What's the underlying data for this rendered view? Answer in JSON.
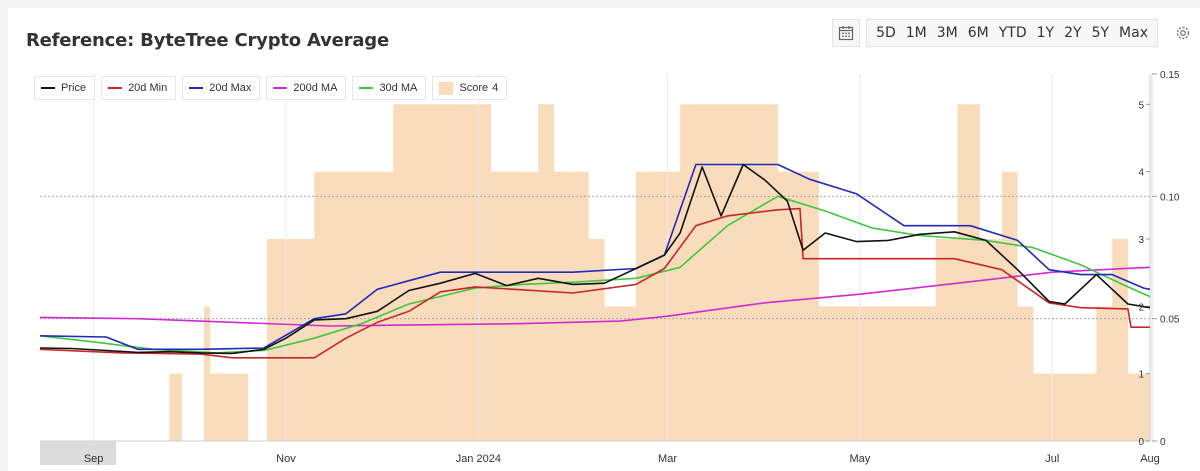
{
  "title": "Reference: ByteTree Crypto Average",
  "toolbar": {
    "calendar_icon": "calendar-icon",
    "ranges": [
      "5D",
      "1M",
      "3M",
      "6M",
      "YTD",
      "1Y",
      "2Y",
      "5Y",
      "Max"
    ],
    "settings_icon": "gear-icon"
  },
  "legend": [
    {
      "label": "Price",
      "color": "#111111",
      "kind": "line"
    },
    {
      "label": "20d Min",
      "color": "#c62828",
      "kind": "line"
    },
    {
      "label": "20d Max",
      "color": "#1f2ab8",
      "kind": "line"
    },
    {
      "label": "200d MA",
      "color": "#d12ad1",
      "kind": "line"
    },
    {
      "label": "30d MA",
      "color": "#3cc83c",
      "kind": "line"
    },
    {
      "label": "Score",
      "color": "#f9dcbc",
      "kind": "area",
      "value": "4"
    }
  ],
  "chart_data": {
    "type": "line",
    "title": "Reference: ByteTree Crypto Average",
    "x_range": [
      "2023-08-15",
      "2024-08-01"
    ],
    "x_ticks": [
      {
        "label": "Sep",
        "date": "2023-09-01"
      },
      {
        "label": "Nov",
        "date": "2023-11-01"
      },
      {
        "label": "Jan 2024",
        "date": "2024-01-01"
      },
      {
        "label": "Mar",
        "date": "2024-03-01"
      },
      {
        "label": "May",
        "date": "2024-05-01"
      },
      {
        "label": "Jul",
        "date": "2024-07-01"
      },
      {
        "label": "Aug",
        "date": "2024-08-01"
      }
    ],
    "y_right": {
      "ticks": [
        0,
        0.05,
        0.1,
        0.15
      ],
      "labels": [
        "0",
        "0.05",
        "0.10",
        "0.15"
      ],
      "range": [
        0,
        0.15
      ]
    },
    "y_score": {
      "ticks": [
        0,
        1,
        2,
        3,
        4,
        5
      ],
      "range": [
        0,
        5.45
      ]
    },
    "grid": {
      "horizontal_dashed": [
        0.05,
        0.1
      ]
    },
    "legend_position": "top-left",
    "series": [
      {
        "name": "Price",
        "color": "#111111",
        "points": [
          [
            "2023-08-15",
            0.038
          ],
          [
            "2023-08-25",
            0.0378
          ],
          [
            "2023-09-05",
            0.037
          ],
          [
            "2023-09-15",
            0.0362
          ],
          [
            "2023-09-25",
            0.0365
          ],
          [
            "2023-10-05",
            0.036
          ],
          [
            "2023-10-15",
            0.0358
          ],
          [
            "2023-10-25",
            0.0375
          ],
          [
            "2023-11-01",
            0.042
          ],
          [
            "2023-11-10",
            0.0495
          ],
          [
            "2023-11-20",
            0.05
          ],
          [
            "2023-11-30",
            0.053
          ],
          [
            "2023-12-10",
            0.0615
          ],
          [
            "2023-12-20",
            0.0645
          ],
          [
            "2023-12-31",
            0.0685
          ],
          [
            "2024-01-10",
            0.0635
          ],
          [
            "2024-01-20",
            0.0665
          ],
          [
            "2024-01-31",
            0.064
          ],
          [
            "2024-02-10",
            0.0645
          ],
          [
            "2024-02-20",
            0.0705
          ],
          [
            "2024-02-29",
            0.076
          ],
          [
            "2024-03-05",
            0.085
          ],
          [
            "2024-03-12",
            0.112
          ],
          [
            "2024-03-18",
            0.092
          ],
          [
            "2024-03-25",
            0.113
          ],
          [
            "2024-04-01",
            0.1065
          ],
          [
            "2024-04-08",
            0.098
          ],
          [
            "2024-04-13",
            0.078
          ],
          [
            "2024-04-20",
            0.085
          ],
          [
            "2024-04-30",
            0.0815
          ],
          [
            "2024-05-10",
            0.082
          ],
          [
            "2024-05-20",
            0.0845
          ],
          [
            "2024-05-31",
            0.0855
          ],
          [
            "2024-06-10",
            0.082
          ],
          [
            "2024-06-20",
            0.07
          ],
          [
            "2024-06-30",
            0.057
          ],
          [
            "2024-07-05",
            0.056
          ],
          [
            "2024-07-15",
            0.068
          ],
          [
            "2024-07-25",
            0.056
          ],
          [
            "2024-08-01",
            0.0545
          ]
        ]
      },
      {
        "name": "20d Min",
        "color": "#c62828",
        "points": [
          [
            "2023-08-15",
            0.0375
          ],
          [
            "2023-09-10",
            0.036
          ],
          [
            "2023-10-05",
            0.0355
          ],
          [
            "2023-10-15",
            0.034
          ],
          [
            "2023-11-10",
            0.034
          ],
          [
            "2023-11-20",
            0.042
          ],
          [
            "2023-11-30",
            0.0485
          ],
          [
            "2023-12-10",
            0.053
          ],
          [
            "2023-12-20",
            0.061
          ],
          [
            "2023-12-31",
            0.063
          ],
          [
            "2024-01-31",
            0.0605
          ],
          [
            "2024-02-20",
            0.064
          ],
          [
            "2024-02-29",
            0.0705
          ],
          [
            "2024-03-10",
            0.088
          ],
          [
            "2024-03-20",
            0.092
          ],
          [
            "2024-04-05",
            0.0945
          ],
          [
            "2024-04-12",
            0.095
          ],
          [
            "2024-04-13",
            0.0745
          ],
          [
            "2024-05-31",
            0.0745
          ],
          [
            "2024-06-15",
            0.07
          ],
          [
            "2024-06-30",
            0.0565
          ],
          [
            "2024-07-10",
            0.0545
          ],
          [
            "2024-07-25",
            0.054
          ],
          [
            "2024-07-26",
            0.0465
          ],
          [
            "2024-08-01",
            0.0465
          ]
        ]
      },
      {
        "name": "20d Max",
        "color": "#1f2ab8",
        "points": [
          [
            "2023-08-15",
            0.043
          ],
          [
            "2023-09-05",
            0.0425
          ],
          [
            "2023-09-15",
            0.0375
          ],
          [
            "2023-10-05",
            0.0375
          ],
          [
            "2023-10-25",
            0.038
          ],
          [
            "2023-11-10",
            0.05
          ],
          [
            "2023-11-20",
            0.052
          ],
          [
            "2023-11-30",
            0.062
          ],
          [
            "2023-12-10",
            0.0655
          ],
          [
            "2023-12-20",
            0.069
          ],
          [
            "2024-01-31",
            0.069
          ],
          [
            "2024-02-20",
            0.0705
          ],
          [
            "2024-02-29",
            0.076
          ],
          [
            "2024-03-10",
            0.113
          ],
          [
            "2024-04-05",
            0.113
          ],
          [
            "2024-04-15",
            0.107
          ],
          [
            "2024-04-30",
            0.101
          ],
          [
            "2024-05-15",
            0.088
          ],
          [
            "2024-06-05",
            0.088
          ],
          [
            "2024-06-20",
            0.082
          ],
          [
            "2024-06-30",
            0.07
          ],
          [
            "2024-07-10",
            0.068
          ],
          [
            "2024-07-20",
            0.068
          ],
          [
            "2024-07-30",
            0.0625
          ],
          [
            "2024-08-01",
            0.062
          ]
        ]
      },
      {
        "name": "200d MA",
        "color": "#d12ad1",
        "points": [
          [
            "2023-08-15",
            0.0505
          ],
          [
            "2023-09-15",
            0.05
          ],
          [
            "2023-10-15",
            0.0485
          ],
          [
            "2023-11-15",
            0.047
          ],
          [
            "2023-12-15",
            0.0475
          ],
          [
            "2024-01-15",
            0.048
          ],
          [
            "2024-02-15",
            0.049
          ],
          [
            "2024-03-01",
            0.051
          ],
          [
            "2024-03-15",
            0.0535
          ],
          [
            "2024-04-01",
            0.0565
          ],
          [
            "2024-05-01",
            0.06
          ],
          [
            "2024-06-01",
            0.0645
          ],
          [
            "2024-07-01",
            0.069
          ],
          [
            "2024-08-01",
            0.071
          ]
        ]
      },
      {
        "name": "30d MA",
        "color": "#3cc83c",
        "points": [
          [
            "2023-08-15",
            0.043
          ],
          [
            "2023-09-01",
            0.0405
          ],
          [
            "2023-09-20",
            0.0375
          ],
          [
            "2023-10-10",
            0.036
          ],
          [
            "2023-10-25",
            0.037
          ],
          [
            "2023-11-10",
            0.042
          ],
          [
            "2023-11-25",
            0.048
          ],
          [
            "2023-12-10",
            0.056
          ],
          [
            "2023-12-31",
            0.0625
          ],
          [
            "2024-01-15",
            0.064
          ],
          [
            "2024-02-01",
            0.065
          ],
          [
            "2024-02-20",
            0.0665
          ],
          [
            "2024-03-05",
            0.071
          ],
          [
            "2024-03-20",
            0.088
          ],
          [
            "2024-04-05",
            0.1
          ],
          [
            "2024-04-20",
            0.094
          ],
          [
            "2024-05-05",
            0.087
          ],
          [
            "2024-05-20",
            0.084
          ],
          [
            "2024-06-10",
            0.082
          ],
          [
            "2024-06-25",
            0.079
          ],
          [
            "2024-07-10",
            0.072
          ],
          [
            "2024-07-25",
            0.063
          ],
          [
            "2024-08-01",
            0.059
          ]
        ]
      }
    ],
    "score_area": {
      "name": "Score",
      "color": "#f9dcbc",
      "steps": [
        [
          "2023-08-15",
          0
        ],
        [
          "2023-09-25",
          1
        ],
        [
          "2023-09-29",
          0
        ],
        [
          "2023-10-06",
          2
        ],
        [
          "2023-10-08",
          1
        ],
        [
          "2023-10-20",
          0
        ],
        [
          "2023-10-26",
          3
        ],
        [
          "2023-11-10",
          4
        ],
        [
          "2023-11-20",
          4
        ],
        [
          "2023-12-05",
          5
        ],
        [
          "2024-01-05",
          4
        ],
        [
          "2024-01-20",
          5
        ],
        [
          "2024-01-25",
          4
        ],
        [
          "2024-02-05",
          3
        ],
        [
          "2024-02-10",
          2
        ],
        [
          "2024-02-20",
          4
        ],
        [
          "2024-03-05",
          5
        ],
        [
          "2024-04-05",
          4
        ],
        [
          "2024-04-18",
          2
        ],
        [
          "2024-04-25",
          2
        ],
        [
          "2024-05-10",
          2
        ],
        [
          "2024-05-25",
          3
        ],
        [
          "2024-06-01",
          5
        ],
        [
          "2024-06-08",
          3
        ],
        [
          "2024-06-15",
          4
        ],
        [
          "2024-06-20",
          2
        ],
        [
          "2024-06-25",
          1
        ],
        [
          "2024-07-15",
          2
        ],
        [
          "2024-07-20",
          3
        ],
        [
          "2024-07-25",
          1
        ],
        [
          "2024-08-01",
          0
        ]
      ]
    }
  }
}
